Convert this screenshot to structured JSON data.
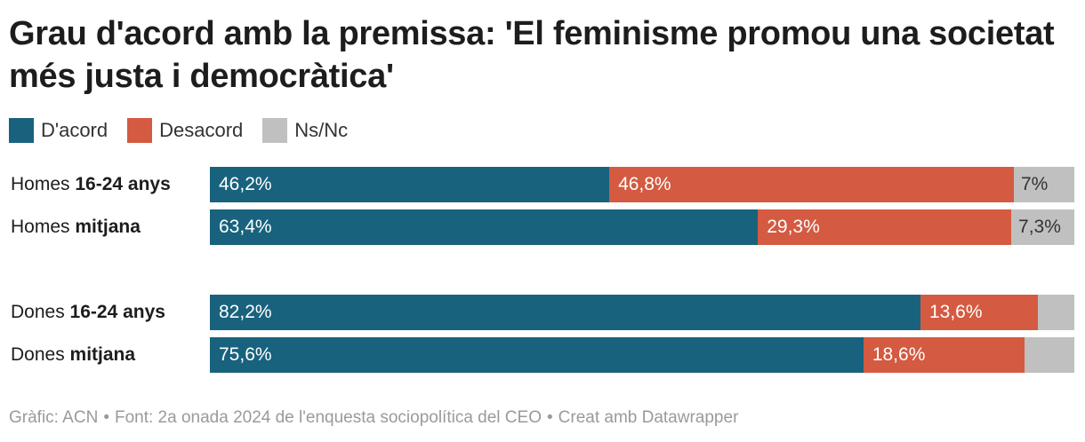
{
  "colors": {
    "agree": "#18627e",
    "disagree": "#d45a41",
    "na": "#c0c0c0"
  },
  "chart_data": {
    "type": "bar",
    "orientation": "horizontal",
    "stacked": true,
    "title": "Grau d'acord amb la premissa: 'El feminisme promou una societat més justa i democràtica'",
    "legend": [
      {
        "key": "agree",
        "label": "D'acord"
      },
      {
        "key": "disagree",
        "label": "Desacord"
      },
      {
        "key": "na",
        "label": "Ns/Nc"
      }
    ],
    "rows": [
      {
        "label_prefix": "Homes",
        "label_bold": "16-24 anys",
        "values": {
          "agree": 46.2,
          "disagree": 46.8,
          "na": 7.0
        },
        "labels": {
          "agree": "46,2%",
          "disagree": "46,8%",
          "na": "7%"
        }
      },
      {
        "label_prefix": "Homes",
        "label_bold": "mitjana",
        "values": {
          "agree": 63.4,
          "disagree": 29.3,
          "na": 7.3
        },
        "labels": {
          "agree": "63,4%",
          "disagree": "29,3%",
          "na": "7,3%"
        }
      },
      {
        "label_prefix": "Dones",
        "label_bold": "16-24 anys",
        "values": {
          "agree": 82.2,
          "disagree": 13.6,
          "na": 4.2
        },
        "labels": {
          "agree": "82,2%",
          "disagree": "13,6%",
          "na": ""
        }
      },
      {
        "label_prefix": "Dones",
        "label_bold": "mitjana",
        "values": {
          "agree": 75.6,
          "disagree": 18.6,
          "na": 5.8
        },
        "labels": {
          "agree": "75,6%",
          "disagree": "18,6%",
          "na": ""
        }
      }
    ],
    "xlim": [
      0,
      100
    ]
  },
  "footer": {
    "credit": "Gràfic: ACN",
    "source": "Font: 2a onada 2024 de l'enquesta sociopolítica del CEO",
    "tool": "Creat amb Datawrapper",
    "separator": "•"
  }
}
